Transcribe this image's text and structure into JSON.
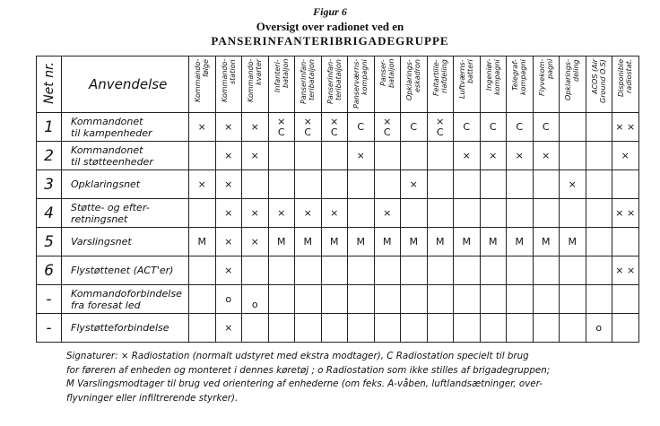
{
  "header": {
    "figure": "Figur 6",
    "title": "Oversigt over radionet ved en",
    "subtitle": "PANSERINFANTERIBRIGADEGRUPPE"
  },
  "table": {
    "columns": [
      [
        "Net nr."
      ],
      [
        "Anvendelse"
      ],
      [
        "Kommando-",
        "følge"
      ],
      [
        "Kommando-",
        "station"
      ],
      [
        "Kommando-",
        "kvarter"
      ],
      [
        "Infanteri-",
        "bataljon"
      ],
      [
        "Panserinfan-",
        "teribataljon"
      ],
      [
        "Panserinfan-",
        "teribataljon"
      ],
      [
        "Panserværns-",
        "kompagni"
      ],
      [
        "Panser-",
        "bataljon"
      ],
      [
        "Opklarings-",
        "eskadron"
      ],
      [
        "Feltartille-",
        "riafdeling"
      ],
      [
        "Luftværns-",
        "batteri"
      ],
      [
        "Ingeniør-",
        "kompagni"
      ],
      [
        "Telegraf-",
        "kompagni"
      ],
      [
        "Flyvekom-",
        "pagni"
      ],
      [
        "Opklarings-",
        "deling"
      ],
      [
        "ACOS (Air",
        "Ground O.S)"
      ],
      [
        "Disponible",
        "radiostat."
      ]
    ],
    "rows": [
      [
        "1",
        [
          "Kommandonet",
          "til kampenheder"
        ],
        [
          "×"
        ],
        [
          "×"
        ],
        [
          "×"
        ],
        [
          "×",
          "C"
        ],
        [
          "×",
          "C"
        ],
        [
          "×",
          "C"
        ],
        [
          "C"
        ],
        [
          "×",
          "C"
        ],
        [
          "C"
        ],
        [
          "×",
          "C"
        ],
        [
          "C"
        ],
        [
          "C"
        ],
        [
          "C"
        ],
        [
          "C"
        ],
        [],
        [],
        [
          "× ×"
        ]
      ],
      [
        "2",
        [
          "Kommandonet",
          "til støtteenheder"
        ],
        [],
        [
          "×"
        ],
        [
          "×"
        ],
        [],
        [],
        [],
        [
          "×"
        ],
        [],
        [],
        [],
        [
          "×"
        ],
        [
          "×"
        ],
        [
          "×"
        ],
        [
          "×"
        ],
        [],
        [],
        [
          "×"
        ]
      ],
      [
        "3",
        [
          "Opklaringsnet"
        ],
        [
          "×"
        ],
        [
          "×"
        ],
        [],
        [],
        [],
        [],
        [],
        [],
        [
          "×"
        ],
        [],
        [],
        [],
        [],
        [],
        [
          "×"
        ],
        [],
        []
      ],
      [
        "4",
        [
          "Støtte- og efter-",
          "retningsnet"
        ],
        [],
        [
          "×"
        ],
        [
          "×"
        ],
        [
          "×"
        ],
        [
          "×"
        ],
        [
          "×"
        ],
        [],
        [
          "×"
        ],
        [],
        [],
        [],
        [],
        [],
        [],
        [],
        [],
        [
          "× ×"
        ]
      ],
      [
        "5",
        [
          "Varslingsnet"
        ],
        [
          "M"
        ],
        [
          "×"
        ],
        [
          "×"
        ],
        [
          "M"
        ],
        [
          "M"
        ],
        [
          "M"
        ],
        [
          "M"
        ],
        [
          "M"
        ],
        [
          "M"
        ],
        [
          "M"
        ],
        [
          "M"
        ],
        [
          "M"
        ],
        [
          "M"
        ],
        [
          "M"
        ],
        [
          "M"
        ],
        [],
        []
      ],
      [
        "6",
        [
          "Flystøttenet (ACT'er)"
        ],
        [],
        [
          "×"
        ],
        [],
        [],
        [],
        [],
        [],
        [],
        [],
        [],
        [],
        [],
        [],
        [],
        [],
        [],
        [
          "× ×"
        ]
      ],
      [
        "-",
        [
          "Kommandoforbindelse",
          "fra foresat led"
        ],
        [],
        [
          "o"
        ],
        [
          "",
          "o"
        ],
        [],
        [],
        [],
        [],
        [],
        [],
        [],
        [],
        [],
        [],
        [],
        [],
        [],
        []
      ],
      [
        "-",
        [
          "Flystøtteforbindelse"
        ],
        [],
        [
          "×"
        ],
        [],
        [],
        [],
        [],
        [],
        [],
        [],
        [],
        [],
        [],
        [],
        [],
        [],
        [
          "o"
        ],
        []
      ]
    ]
  },
  "footer": [
    "Signaturer:  × Radiostation (normalt udstyret med ekstra modtager),  C  Radiostation specielt til brug",
    "for føreren af enheden og monteret i dennes køretøj ; o Radiostation som ikke stilles af brigadegruppen;",
    "M Varslingsmodtager til brug ved orientering af enhederne (om feks. A-våben, luftlandsætninger, over-",
    "flyvninger eller infiltrerende styrker)."
  ]
}
